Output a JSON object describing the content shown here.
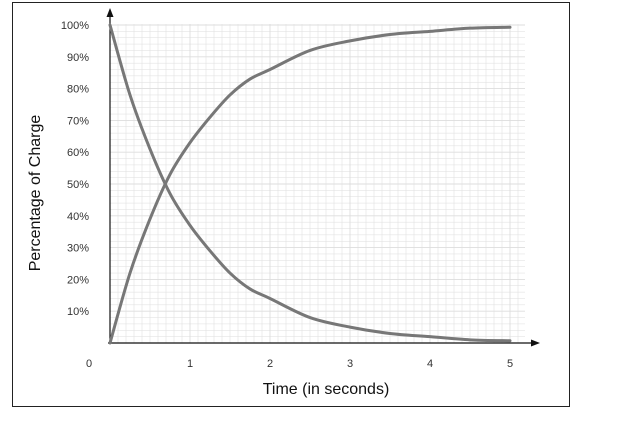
{
  "chart_data": {
    "type": "line",
    "title": "",
    "xlabel": "Time (in seconds)",
    "ylabel": "Percentage of Charge",
    "xlim": [
      0,
      5.2
    ],
    "ylim": [
      0,
      100
    ],
    "x_ticks": [
      {
        "value": 0,
        "label": "0"
      },
      {
        "value": 1,
        "label": "1"
      },
      {
        "value": 2,
        "label": "2"
      },
      {
        "value": 3,
        "label": "3"
      },
      {
        "value": 4,
        "label": "4"
      },
      {
        "value": 5,
        "label": "5"
      }
    ],
    "y_ticks": [
      {
        "value": 10,
        "label": "10%"
      },
      {
        "value": 20,
        "label": "20%"
      },
      {
        "value": 30,
        "label": "30%"
      },
      {
        "value": 40,
        "label": "40%"
      },
      {
        "value": 50,
        "label": "50%"
      },
      {
        "value": 60,
        "label": "60%"
      },
      {
        "value": 70,
        "label": "70%"
      },
      {
        "value": 80,
        "label": "80%"
      },
      {
        "value": 90,
        "label": "90%"
      },
      {
        "value": 100,
        "label": "100%"
      }
    ],
    "grid": true,
    "legend": "none",
    "line_color": "#777777",
    "grid_color": "#dddddd",
    "axis_color": "#111111",
    "x": [
      0,
      0.25,
      0.5,
      0.75,
      1,
      1.25,
      1.5,
      1.75,
      2,
      2.5,
      3,
      3.5,
      4,
      4.5,
      5
    ],
    "series": [
      {
        "values": [
          0,
          22,
          39,
          53,
          63,
          71,
          78,
          83,
          86,
          92,
          95,
          97,
          98,
          99,
          99.3
        ]
      },
      {
        "values": [
          100,
          78,
          61,
          47,
          37,
          29,
          22,
          17,
          14,
          8,
          5,
          3,
          2,
          1,
          0.7
        ]
      }
    ]
  }
}
